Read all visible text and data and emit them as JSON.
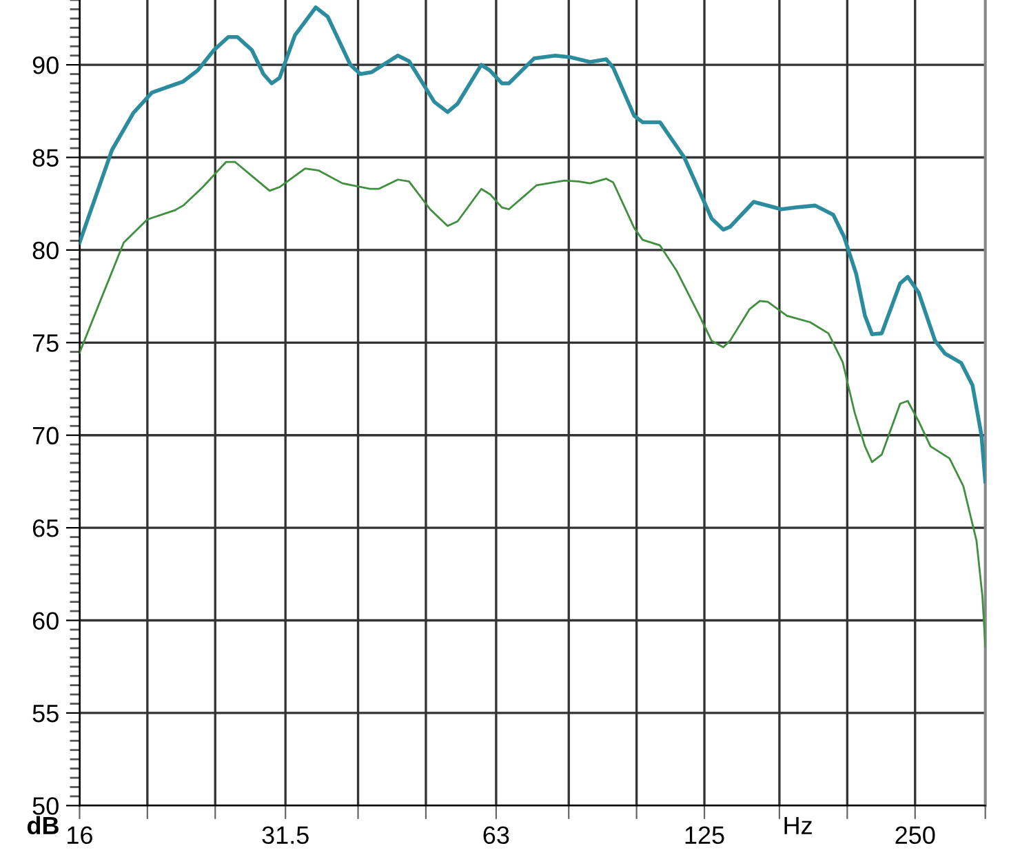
{
  "chart_data": {
    "type": "line",
    "xlabel": "Hz",
    "ylabel": "dB",
    "log": "x",
    "grid": true,
    "marker": "none",
    "line_style": "solid",
    "xlim": [
      16,
      315
    ],
    "ylim": [
      50,
      93.5
    ],
    "xticks": [
      16,
      {
        "value": 20,
        "label": null
      },
      {
        "value": 25,
        "label": null
      },
      31.5,
      {
        "value": 40,
        "label": null
      },
      {
        "value": 50,
        "label": null
      },
      63,
      {
        "value": 80,
        "label": null
      },
      {
        "value": 100,
        "label": null
      },
      125,
      {
        "value": 160,
        "label": null
      },
      {
        "value": 200,
        "label": null
      },
      250,
      {
        "value": 315,
        "label": null
      }
    ],
    "yticks": [
      50,
      55,
      60,
      65,
      70,
      75,
      80,
      85,
      90
    ],
    "series": [
      {
        "color": "#2b8c9e",
        "x": [
          16.0,
          17.8,
          19.1,
          20.3,
          22.5,
          23.6,
          24.9,
          26.1,
          26.9,
          28.2,
          29.3,
          30.1,
          30.9,
          32.5,
          34.8,
          36.2,
          39.0,
          40.3,
          41.8,
          45.6,
          47.3,
          51.4,
          53.7,
          55.5,
          60.0,
          61.7,
          64.2,
          65.7,
          71.4,
          76.5,
          80.7,
          85.8,
          90.5,
          92.6,
          99.2,
          102,
          108,
          117,
          128,
          133,
          136,
          147,
          161,
          169,
          180,
          191,
          198,
          206,
          212,
          217,
          224,
          238,
          244,
          253,
          267,
          276,
          291,
          302,
          311,
          315
        ],
        "values": [
          80.4,
          85.4,
          87.4,
          88.5,
          89.1,
          89.7,
          90.8,
          91.5,
          91.5,
          90.8,
          89.5,
          89.0,
          89.3,
          91.6,
          93.1,
          92.6,
          90.0,
          89.5,
          89.6,
          90.5,
          90.2,
          88.0,
          87.45,
          87.9,
          90.0,
          89.7,
          89.0,
          89.0,
          90.35,
          90.5,
          90.4,
          90.15,
          90.3,
          89.85,
          87.25,
          86.9,
          86.9,
          85.0,
          81.7,
          81.1,
          81.25,
          82.6,
          82.2,
          82.3,
          82.4,
          81.9,
          80.7,
          78.7,
          76.45,
          75.45,
          75.5,
          78.2,
          78.55,
          77.7,
          75.1,
          74.4,
          73.9,
          72.7,
          70.0,
          67.5
        ]
      },
      {
        "color": "#3f8f3f",
        "x": [
          16.0,
          16.9,
          18.5,
          20.0,
          21.9,
          22.5,
          24.0,
          25.9,
          26.7,
          28.2,
          29.9,
          30.9,
          33.6,
          35.1,
          38.0,
          41.6,
          42.8,
          45.6,
          47.3,
          50.7,
          53.7,
          55.5,
          60.0,
          61.8,
          64.2,
          65.7,
          72.0,
          78.9,
          82.6,
          85.8,
          90.5,
          92.6,
          99.2,
          102,
          108,
          114,
          123,
          128,
          133,
          136,
          145,
          150,
          154,
          164,
          177,
          188,
          197,
          205,
          212,
          217,
          224,
          238,
          244,
          253,
          263,
          280,
          293,
          306,
          312,
          315
        ],
        "values": [
          74.45,
          76.7,
          80.4,
          81.65,
          82.15,
          82.4,
          83.4,
          84.75,
          84.75,
          84.0,
          83.2,
          83.4,
          84.4,
          84.3,
          83.6,
          83.3,
          83.3,
          83.8,
          83.7,
          82.2,
          81.3,
          81.55,
          83.3,
          83.0,
          82.3,
          82.2,
          83.5,
          83.75,
          83.7,
          83.6,
          83.85,
          83.65,
          81.2,
          80.55,
          80.25,
          78.9,
          76.45,
          75.1,
          74.75,
          75.1,
          76.8,
          77.25,
          77.2,
          76.45,
          76.1,
          75.5,
          73.95,
          71.2,
          69.4,
          68.55,
          68.95,
          71.7,
          71.85,
          70.75,
          69.4,
          68.75,
          67.25,
          64.3,
          61.3,
          58.6
        ]
      }
    ]
  }
}
